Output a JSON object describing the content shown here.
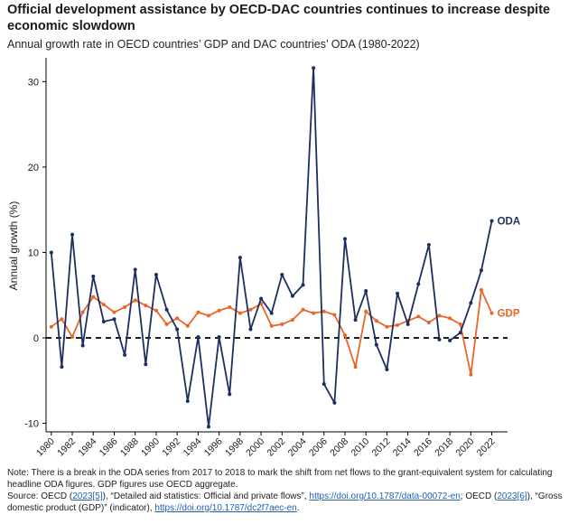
{
  "title": "Official development assistance by OECD-DAC countries continues to increase despite economic slowdown",
  "subtitle": "Annual growth rate in OECD countries’ GDP and DAC countries’ ODA (1980-2022)",
  "note": "Note: There is a break in the ODA series from 2017 to 2018 to mark the shift from net flows to the grant-equivalent system for calculating headline ODA figures. GDP figures use OECD aggregate.",
  "source": {
    "prefix": "Source: OECD (",
    "ref1": "2023[5]",
    "mid1": "), “Detailed aid statistics: Official and private flows”, ",
    "link1": "https://doi.org/10.1787/data-00072-en",
    "mid2": "; OECD (",
    "ref2": "2023[6]",
    "mid3": "), “Gross domestic product (GDP)” (indicator), ",
    "link2": "https://doi.org/10.1787/dc2f7aec-en",
    "suffix": "."
  },
  "colors": {
    "oda": "#1c2f5f",
    "gdp": "#e8662a",
    "zero_line": "#000000",
    "axis": "#000000"
  },
  "chart_data": {
    "type": "line",
    "title": "Official development assistance by OECD-DAC countries continues to increase despite economic slowdown",
    "ylabel": "Annual growth (%)",
    "xlabel": "",
    "ylim": [
      -11,
      33
    ],
    "yticks": [
      -10,
      0,
      10,
      20,
      30
    ],
    "xlim": [
      1979.5,
      2023.5
    ],
    "xticks": [
      1980,
      1982,
      1984,
      1986,
      1988,
      1990,
      1992,
      1994,
      1996,
      1998,
      2000,
      2002,
      2004,
      2006,
      2008,
      2010,
      2012,
      2014,
      2016,
      2018,
      2020,
      2022
    ],
    "zero_line": "dashed",
    "series": [
      {
        "name": "ODA",
        "label": "ODA",
        "segments": [
          {
            "x": [
              1980,
              1981,
              1982,
              1983,
              1984,
              1985,
              1986,
              1987,
              1988,
              1989,
              1990,
              1991,
              1992,
              1993,
              1994,
              1995,
              1996,
              1997,
              1998,
              1999,
              2000,
              2001,
              2002,
              2003,
              2004,
              2005,
              2006,
              2007,
              2008,
              2009,
              2010,
              2011,
              2012,
              2013,
              2014,
              2015,
              2016,
              2017
            ],
            "y": [
              10.0,
              -3.4,
              12.1,
              -0.9,
              7.2,
              1.9,
              2.2,
              -2.0,
              8.0,
              -3.1,
              7.4,
              3.3,
              1.0,
              -7.4,
              0.1,
              -10.4,
              0.1,
              -6.6,
              9.4,
              1.0,
              4.6,
              2.9,
              7.4,
              4.9,
              6.2,
              31.6,
              -5.4,
              -7.6,
              11.6,
              2.1,
              5.5,
              -0.8,
              -3.7,
              5.2,
              1.6,
              6.3,
              10.9,
              -0.2
            ]
          },
          {
            "x": [
              2018,
              2019,
              2020,
              2021,
              2022
            ],
            "y": [
              -0.3,
              0.6,
              4.1,
              7.9,
              13.7
            ]
          }
        ]
      },
      {
        "name": "GDP",
        "label": "GDP",
        "segments": [
          {
            "x": [
              1980,
              1981,
              1982,
              1983,
              1984,
              1985,
              1986,
              1987,
              1988,
              1989,
              1990,
              1991,
              1992,
              1993,
              1994,
              1995,
              1996,
              1997,
              1998,
              1999,
              2000,
              2001,
              2002,
              2003,
              2004,
              2005,
              2006,
              2007,
              2008,
              2009,
              2010,
              2011,
              2012,
              2013,
              2014,
              2015,
              2016,
              2017,
              2018,
              2019,
              2020,
              2021,
              2022
            ],
            "y": [
              1.3,
              2.2,
              0.1,
              3.0,
              4.8,
              3.9,
              3.0,
              3.6,
              4.4,
              3.8,
              3.2,
              1.6,
              2.3,
              1.4,
              3.0,
              2.6,
              3.2,
              3.6,
              2.9,
              3.3,
              4.0,
              1.4,
              1.6,
              2.1,
              3.3,
              2.9,
              3.1,
              2.7,
              0.3,
              -3.4,
              3.1,
              2.0,
              1.3,
              1.5,
              2.0,
              2.5,
              1.8,
              2.6,
              2.3,
              1.6,
              -4.3,
              5.6,
              2.9
            ]
          }
        ]
      }
    ]
  }
}
